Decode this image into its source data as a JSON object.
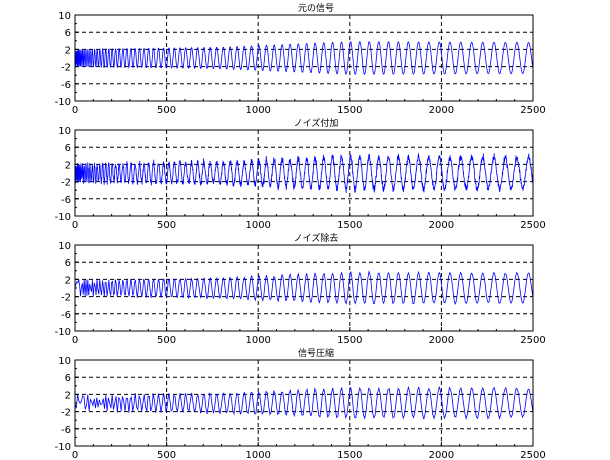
{
  "chart_data": [
    {
      "type": "line",
      "title": "元の信号",
      "xlabel": "",
      "ylabel": "",
      "xlim": [
        0,
        2500
      ],
      "ylim": [
        -10,
        10
      ],
      "xticks": [
        0,
        500,
        1000,
        1500,
        2000,
        2500
      ],
      "yticks": [
        -10,
        -6,
        -2,
        2,
        6,
        10
      ],
      "grid": true,
      "series": [
        {
          "color": "#0000ff",
          "kind": "clean-chirp",
          "description_points": [
            [
              0,
              0
            ],
            [
              250,
              2.2
            ],
            [
              500,
              2.5
            ],
            [
              1000,
              3.8
            ],
            [
              1250,
              -2.5
            ],
            [
              1500,
              3.8
            ],
            [
              2000,
              -3.6
            ],
            [
              2500,
              1.8
            ]
          ]
        }
      ]
    },
    {
      "type": "line",
      "title": "ノイズ付加",
      "xlabel": "",
      "ylabel": "",
      "xlim": [
        0,
        2500
      ],
      "ylim": [
        -10,
        10
      ],
      "xticks": [
        0,
        500,
        1000,
        1500,
        2000,
        2500
      ],
      "yticks": [
        -10,
        -6,
        -2,
        2,
        6,
        10
      ],
      "grid": true,
      "series": [
        {
          "color": "#0000ff",
          "kind": "noisy-chirp",
          "description_points": [
            [
              0,
              0
            ],
            [
              500,
              2.5
            ],
            [
              1000,
              3.8
            ],
            [
              1250,
              -3.0
            ],
            [
              1500,
              4.5
            ],
            [
              2000,
              -4.0
            ],
            [
              2500,
              2.0
            ]
          ]
        }
      ]
    },
    {
      "type": "line",
      "title": "ノイズ除去",
      "xlabel": "",
      "ylabel": "",
      "xlim": [
        0,
        2500
      ],
      "ylim": [
        -10,
        10
      ],
      "xticks": [
        0,
        500,
        1000,
        1500,
        2000,
        2500
      ],
      "yticks": [
        -10,
        -6,
        -2,
        2,
        6,
        10
      ],
      "grid": true,
      "series": [
        {
          "color": "#0000ff",
          "kind": "denoised-chirp",
          "description_points": [
            [
              0,
              0
            ],
            [
              500,
              2.5
            ],
            [
              1000,
              3.8
            ],
            [
              1250,
              -3.0
            ],
            [
              1500,
              3.8
            ],
            [
              2000,
              -3.6
            ],
            [
              2500,
              1.8
            ]
          ]
        }
      ]
    },
    {
      "type": "line",
      "title": "信号圧縮",
      "xlabel": "",
      "ylabel": "",
      "xlim": [
        0,
        2500
      ],
      "ylim": [
        -10,
        10
      ],
      "xticks": [
        0,
        500,
        1000,
        1500,
        2000,
        2500
      ],
      "yticks": [
        -10,
        -6,
        -2,
        2,
        6,
        10
      ],
      "grid": true,
      "series": [
        {
          "color": "#0000ff",
          "kind": "compressed-chirp",
          "description_points": [
            [
              0,
              0
            ],
            [
              500,
              2.5
            ],
            [
              1000,
              3.8
            ],
            [
              1250,
              -3.0
            ],
            [
              1500,
              3.8
            ],
            [
              2000,
              -3.6
            ],
            [
              2500,
              1.8
            ]
          ]
        }
      ]
    }
  ]
}
